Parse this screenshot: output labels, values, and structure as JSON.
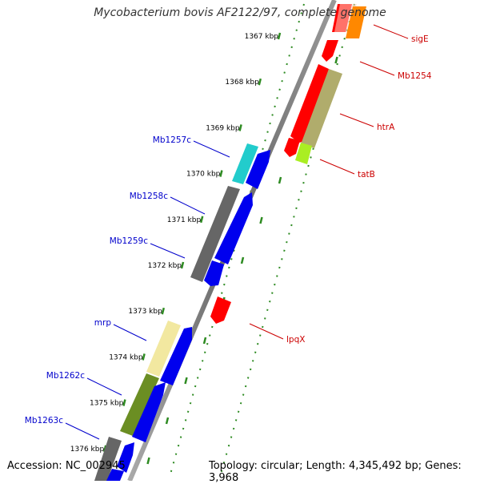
{
  "title": "Mycobacterium bovis AF2122/97, complete genome",
  "footer": {
    "accession": "Accession: NC_002945",
    "topology": "Topology: circular; Length: 4,345,492 bp; Genes: 3,968"
  },
  "ticks": [
    "1367 kbp",
    "1368 kbp",
    "1369 kbp",
    "1370 kbp",
    "1371 kbp",
    "1372 kbp",
    "1373 kbp",
    "1374 kbp",
    "1375 kbp",
    "1376 kbp"
  ],
  "left_labels": [
    "Mb1257c",
    "Mb1258c",
    "Mb1259c",
    "mrp",
    "Mb1262c",
    "Mb1263c"
  ],
  "right_labels": [
    "sigE",
    "Mb1254",
    "htrA",
    "tatB",
    "lpqX"
  ],
  "colors": {
    "forward_gene": "#ff0000",
    "reverse_gene": "#0000ff",
    "left_label": "#0000cc",
    "right_label": "#cc0000",
    "tick": "#2e8b22",
    "backbone": "#888888"
  }
}
